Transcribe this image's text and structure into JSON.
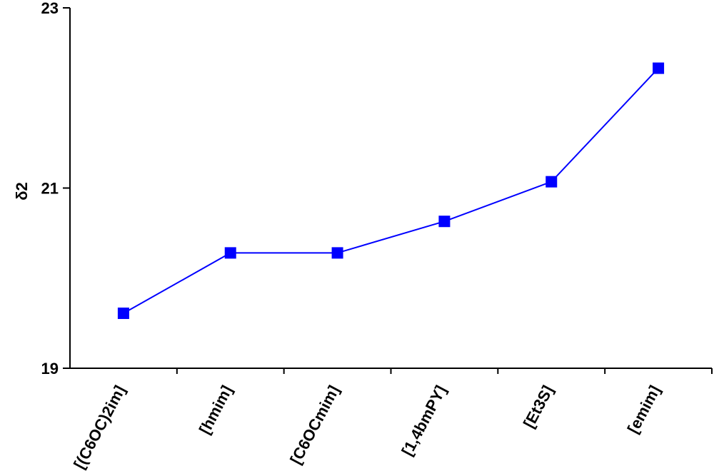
{
  "chart_data": {
    "type": "line",
    "y_label": "δ2",
    "categories": [
      "[(C6OC)2im]",
      "[hmim]",
      "[C6OCmim]",
      "[1,4bmPY]",
      "[Et3S]",
      "[emim]"
    ],
    "series": [
      {
        "name": "δ2",
        "color": "#0000ff",
        "values": [
          19.61,
          20.28,
          20.28,
          20.63,
          21.07,
          22.33
        ]
      }
    ],
    "ylim": [
      19,
      23
    ],
    "yticks": [
      19,
      21,
      23
    ],
    "marker": "square"
  }
}
